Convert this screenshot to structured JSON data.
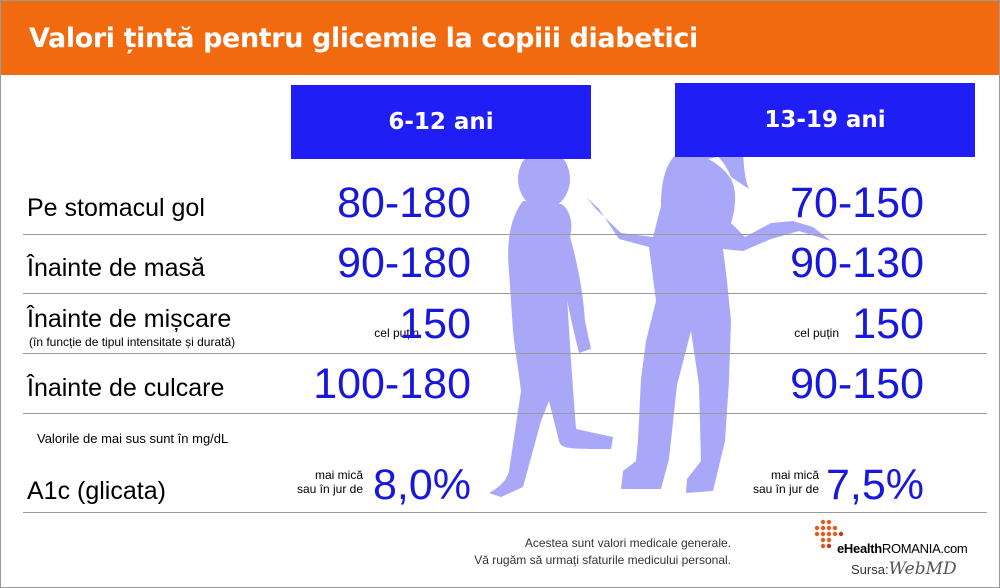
{
  "header": {
    "title": "Valori țintă pentru glicemie la copiii diabetici"
  },
  "columns": {
    "group_a": "6-12 ani",
    "group_b": "13-19 ani"
  },
  "rows": {
    "fasting": {
      "label": "Pe stomacul gol",
      "a": "80-180",
      "b": "70-150"
    },
    "before_meal": {
      "label": "Înainte de masă",
      "a": "90-180",
      "b": "90-130"
    },
    "before_exercise": {
      "label": "Înainte de mișcare",
      "sublabel": "(în funcție de tipul intensitate și durată)",
      "prefix": "cel puțin",
      "a": "150",
      "b": "150"
    },
    "bedtime": {
      "label": "Înainte de culcare",
      "a": "100-180",
      "b": "90-150"
    },
    "a1c": {
      "label": "A1c (glicata)",
      "prefix_line1": "mai mică",
      "prefix_line2": "sau în jur de",
      "a": "8,0%",
      "b": "7,5%"
    }
  },
  "units_note": "Valorile de mai sus sunt în mg/dL",
  "footer": {
    "line1": "Acestea sunt valori medicale generale.",
    "line2": "Vă rugăm să urmați sfaturile medicului personal."
  },
  "logo": {
    "brand_bold": "eHealth",
    "brand_rest": "ROMANIA.com",
    "source_label": "Sursa:",
    "source_name": "WebMD",
    "icon": "ehealth-plus-icon"
  },
  "colors": {
    "header": "#f26a0f",
    "column_header": "#1e1ef5",
    "values": "#1818dc",
    "silhouette": "#a9a7f7"
  }
}
